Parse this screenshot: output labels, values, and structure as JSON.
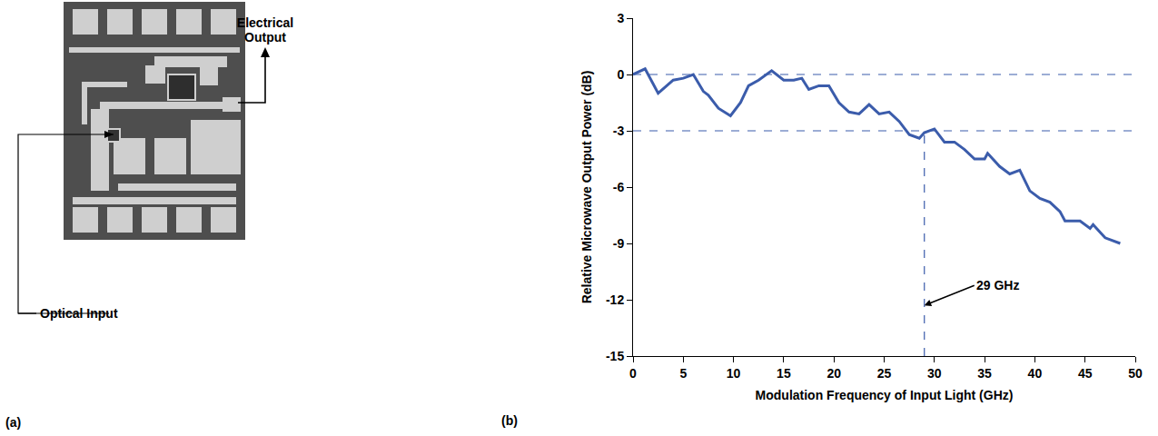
{
  "figure_a": {
    "panel_label": "(a)",
    "labels": {
      "optical_input": "Optical Input",
      "electrical_output": "Electrical Output"
    }
  },
  "chart_data": {
    "type": "line",
    "panel_label": "(b)",
    "x_label": "Modulation Frequency of Input Light (GHz)",
    "y_label": "Relative Microwave Output Power (dB)",
    "x": [
      0,
      1.2,
      2.5,
      4,
      5,
      6,
      7,
      7.5,
      8.5,
      9.7,
      10.7,
      11.5,
      12.5,
      13.8,
      15,
      16,
      16.8,
      17.5,
      18.5,
      19.5,
      20.5,
      21.5,
      22.5,
      23.5,
      24.5,
      25.5,
      26.5,
      27.5,
      28.5,
      29,
      30,
      31,
      32,
      33,
      34,
      35,
      35.3,
      36.5,
      37.5,
      38.5,
      39.5,
      40.5,
      41.5,
      42.5,
      43,
      44.5,
      45.5,
      45.8,
      47,
      48.5
    ],
    "values": [
      0,
      0.3,
      -1.0,
      -0.3,
      -0.2,
      0,
      -0.9,
      -1.1,
      -1.8,
      -2.2,
      -1.5,
      -0.6,
      -0.3,
      0.2,
      -0.3,
      -0.3,
      -0.2,
      -0.8,
      -0.6,
      -0.6,
      -1.5,
      -2.0,
      -2.1,
      -1.6,
      -2.1,
      -2.0,
      -2.5,
      -3.2,
      -3.4,
      -3.1,
      -2.9,
      -3.6,
      -3.6,
      -4.0,
      -4.5,
      -4.5,
      -4.2,
      -4.9,
      -5.3,
      -5.1,
      -6.2,
      -6.6,
      -6.8,
      -7.3,
      -7.8,
      -7.8,
      -8.2,
      -8.0,
      -8.7,
      -9.0
    ],
    "color": "#3b5cab",
    "xlim": [
      0,
      50
    ],
    "xticks": [
      0,
      5,
      10,
      15,
      20,
      25,
      30,
      35,
      40,
      45,
      50
    ],
    "ylim": [
      -15,
      3
    ],
    "yticks": [
      3,
      0,
      -3,
      -6,
      -9,
      -12,
      -15
    ],
    "hlines": [
      0,
      -3
    ],
    "vline": {
      "x": 29,
      "ylim": [
        -15,
        -3
      ]
    },
    "line_style": "dashed",
    "annotations": [
      {
        "text": "29 GHz",
        "x": 29,
        "y": -12.3
      }
    ],
    "grid": false
  }
}
